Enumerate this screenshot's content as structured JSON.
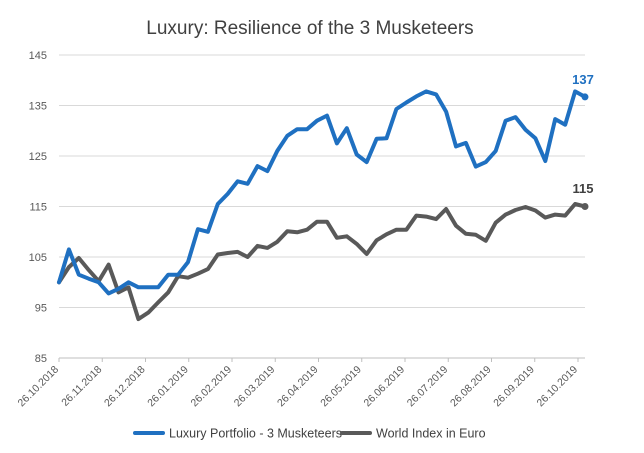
{
  "chart_data": {
    "type": "line",
    "title": "Luxury: Resilience of the 3 Musketeers",
    "xlabel": "",
    "ylabel": "",
    "ylim": [
      85,
      145
    ],
    "yticks": [
      "85",
      "95",
      "105",
      "115",
      "125",
      "135",
      "145"
    ],
    "x_tick_labels": [
      "26.10.2018",
      "26.11.2018",
      "26.12.2018",
      "26.01.2019",
      "26.02.2019",
      "26.03.2019",
      "26.04.2019",
      "26.05.2019",
      "26.06.2019",
      "26.07.2019",
      "26.08.2019",
      "26.09.2019",
      "26.10.2019"
    ],
    "grid": "horizontal",
    "legend_position": "bottom",
    "colors": {
      "luxury": "#1f70c1",
      "world": "#595959",
      "grid": "#d9d9d9"
    },
    "end_labels": {
      "luxury": "137",
      "world": "115"
    },
    "series": [
      {
        "name": "Luxury Portfolio - 3 Musketeers",
        "color": "#1f70c1",
        "values": [
          100,
          106.5,
          101.5,
          100.7,
          100,
          97.8,
          98.7,
          100,
          99,
          99,
          99,
          101.5,
          101.5,
          104,
          110.5,
          110,
          115.5,
          117.5,
          120,
          119.5,
          123,
          122,
          126,
          129,
          130.3,
          130.3,
          132,
          133,
          127.5,
          130.5,
          125.3,
          123.8,
          128.4,
          128.5,
          134.3,
          135.6,
          136.8,
          137.8,
          137.2,
          133.8,
          126.9,
          127.6,
          122.9,
          123.8,
          126,
          132,
          132.7,
          130.2,
          128.5,
          124,
          132.3,
          131.2,
          137.8,
          136.7
        ]
      },
      {
        "name": "World Index in Euro",
        "color": "#595959",
        "values": [
          100,
          103,
          104.8,
          102.4,
          100.2,
          103.5,
          98,
          99,
          92.7,
          94,
          96,
          98,
          101.2,
          100.9,
          101.7,
          102.6,
          105.5,
          105.8,
          106,
          105,
          107.2,
          106.8,
          108,
          110.1,
          109.9,
          110.4,
          112,
          112,
          108.8,
          109.1,
          107.6,
          105.6,
          108.3,
          109.5,
          110.4,
          110.4,
          113.2,
          113,
          112.5,
          114.5,
          111.2,
          109.6,
          109.4,
          108.2,
          111.8,
          113.4,
          114.3,
          114.9,
          114.2,
          112.8,
          113.4,
          113.2,
          115.5,
          115
        ]
      }
    ]
  }
}
